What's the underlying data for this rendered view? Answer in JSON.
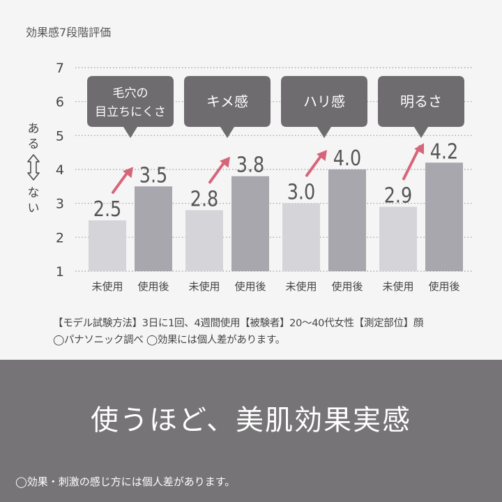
{
  "chart_data": {
    "type": "bar",
    "title": "効果感7段階評価",
    "ylabel_top": "ある",
    "ylabel_bottom": "ない",
    "ylim": [
      1,
      7
    ],
    "yticks": [
      "1",
      "2",
      "3",
      "4",
      "5",
      "6",
      "7"
    ],
    "grid": true,
    "bar_labels": [
      "未使用",
      "使用後"
    ],
    "groups": [
      {
        "callout": [
          "毛穴の",
          "目立ちにくさ"
        ],
        "before": 2.5,
        "after": 3.5,
        "before_label": "2.5",
        "after_label": "3.5"
      },
      {
        "callout": [
          "キメ感"
        ],
        "before": 2.8,
        "after": 3.8,
        "before_label": "2.8",
        "after_label": "3.8"
      },
      {
        "callout": [
          "ハリ感"
        ],
        "before": 3.0,
        "after": 4.0,
        "before_label": "3.0",
        "after_label": "4.0"
      },
      {
        "callout": [
          "明るさ"
        ],
        "before": 2.9,
        "after": 4.2,
        "before_label": "2.9",
        "after_label": "4.2"
      }
    ],
    "colors": {
      "before": "#d5d5d9",
      "after": "#a7a7ad",
      "arrow": "#d6657a",
      "callout": "#6e6c6e",
      "grid": "#9a9a9a"
    }
  },
  "notes": {
    "line1": "【モデル試験方法】3日に1回、4週間使用【被験者】20～40代女性【測定部位】顔",
    "line2": "◯パナソニック調べ ◯効果には個人差があります。"
  },
  "banner": {
    "headline": "使うほど、美肌効果実感",
    "footnote": "◯効果・刺激の感じ方には個人差があります。"
  }
}
